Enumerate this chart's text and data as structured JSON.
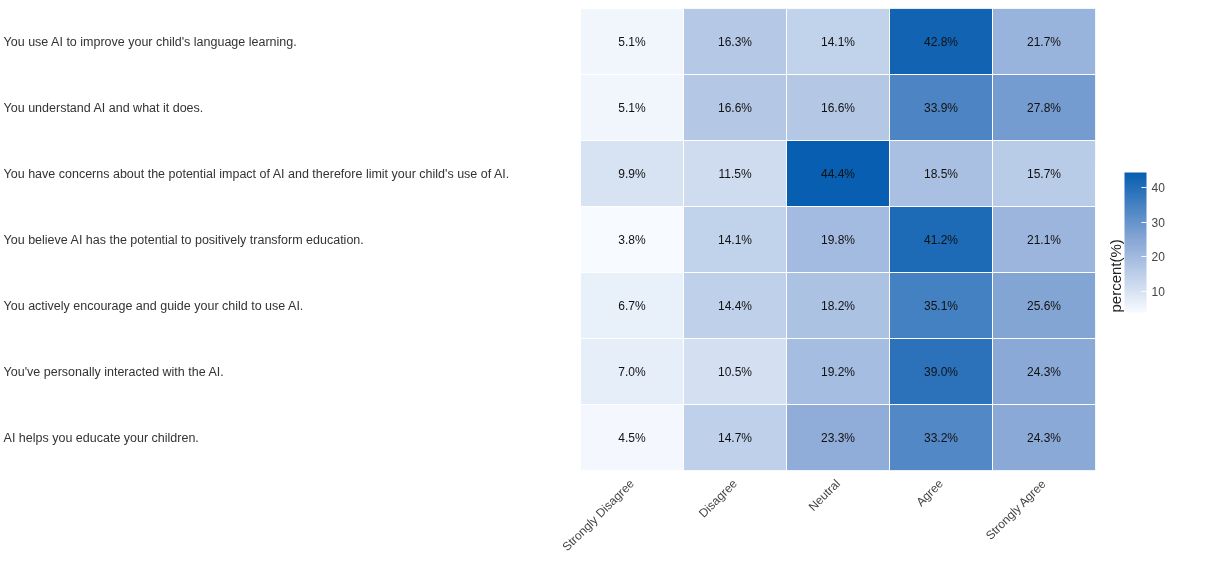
{
  "chart_data": {
    "type": "heatmap",
    "clabel": "percent(%)",
    "categories": [
      "Strongly Disagree",
      "Disagree",
      "Neutral",
      "Agree",
      "Strongly Agree"
    ],
    "y_categories": [
      "You use AI to improve your child's language learning.",
      "You understand AI and what it does.",
      "You have concerns about the potential impact of AI and therefore limit your child's use of AI.",
      "You believe AI has the potential to positively transform education.",
      "You actively encourage and guide your child to use AI.",
      "You've personally interacted with the AI.",
      "AI helps you educate your children."
    ],
    "cells": [
      [
        5.1,
        16.3,
        14.1,
        42.8,
        21.7
      ],
      [
        5.1,
        16.6,
        16.6,
        33.9,
        27.8
      ],
      [
        9.9,
        11.5,
        44.4,
        18.5,
        15.7
      ],
      [
        3.8,
        14.1,
        19.8,
        41.2,
        21.1
      ],
      [
        6.7,
        14.4,
        18.2,
        35.1,
        25.6
      ],
      [
        7.0,
        10.5,
        19.2,
        39.0,
        24.3
      ],
      [
        4.5,
        14.7,
        23.3,
        33.2,
        24.3
      ]
    ],
    "cell_labels": [
      [
        "5.1%",
        "16.3%",
        "14.1%",
        "42.8%",
        "21.7%"
      ],
      [
        "5.1%",
        "16.6%",
        "16.6%",
        "33.9%",
        "27.8%"
      ],
      [
        "9.9%",
        "11.5%",
        "44.4%",
        "18.5%",
        "15.7%"
      ],
      [
        "3.8%",
        "14.1%",
        "19.8%",
        "41.2%",
        "21.1%"
      ],
      [
        "6.7%",
        "14.4%",
        "18.2%",
        "35.1%",
        "25.6%"
      ],
      [
        "7.0%",
        "10.5%",
        "19.2%",
        "39.0%",
        "24.3%"
      ],
      [
        "4.5%",
        "14.7%",
        "23.3%",
        "33.2%",
        "24.3%"
      ]
    ],
    "clim": [
      3.8,
      44.4
    ],
    "cticks": [
      10,
      20,
      30,
      40
    ]
  }
}
